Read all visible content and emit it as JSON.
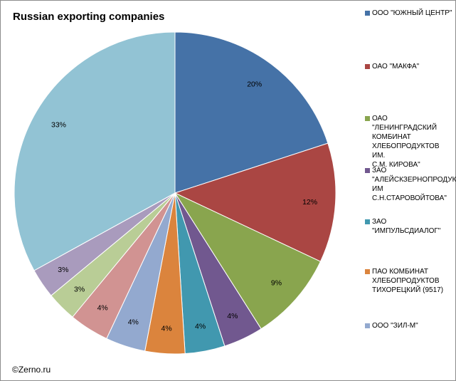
{
  "chart_data": {
    "type": "pie",
    "title": "Russian exporting companies",
    "labels": [
      "ООО \"ЮЖНЫЙ ЦЕНТР\"",
      "ОАО \"МАКФА\"",
      "ОАО \"ЛЕНИНГРАДСКИЙ КОМБИНАТ ХЛЕБОПРОДУКТОВ ИМ. С.М. КИРОВА\"",
      "ЗАО \"АЛЕЙСКЗЕРНОПРОДУКТ ИМ С.Н.СТАРОВОЙТОВА\"",
      "ЗАО \"ИМПУЛЬСДИАЛОГ\"",
      "ПАО КОМБИНАТ ХЛЕБОПРОДУКТОВ ТИХОРЕЦКИЙ (9517)",
      "ООО \"ЗИЛ-М\"",
      "",
      "",
      "",
      ""
    ],
    "values": [
      20,
      12,
      9,
      4,
      4,
      4,
      4,
      4,
      3,
      3,
      33
    ],
    "data_labels": [
      "20%",
      "12%",
      "9%",
      "4%",
      "4%",
      "4%",
      "4%",
      "4%",
      "3%",
      "3%",
      "33%"
    ],
    "colors": [
      "#4572a7",
      "#aa4643",
      "#89a54e",
      "#71588f",
      "#4198af",
      "#db843d",
      "#93a9cf",
      "#d19392",
      "#b9cd96",
      "#a99bbd",
      "#92c3d4"
    ],
    "legend_position": "right",
    "legend_visible_count": 7
  },
  "legend_lines": [
    "ООО \"ЮЖНЫЙ ЦЕНТР\"",
    "ОАО \"МАКФА\"",
    "ОАО \"ЛЕНИНГРАДСКИЙ\nКОМБИНАТ\nХЛЕБОПРОДУКТОВ ИМ.\nС.М. КИРОВА\"",
    "ЗАО\n\"АЛЕЙСКЗЕРНОПРОДУКТ\nИМ С.Н.СТАРОВОЙТОВА\"",
    "ЗАО \"ИМПУЛЬСДИАЛОГ\"",
    "ПАО КОМБИНАТ\nХЛЕБОПРОДУКТОВ\nТИХОРЕЦКИЙ (9517)",
    "ООО \"ЗИЛ-М\""
  ],
  "source_note": "©Zerno.ru"
}
